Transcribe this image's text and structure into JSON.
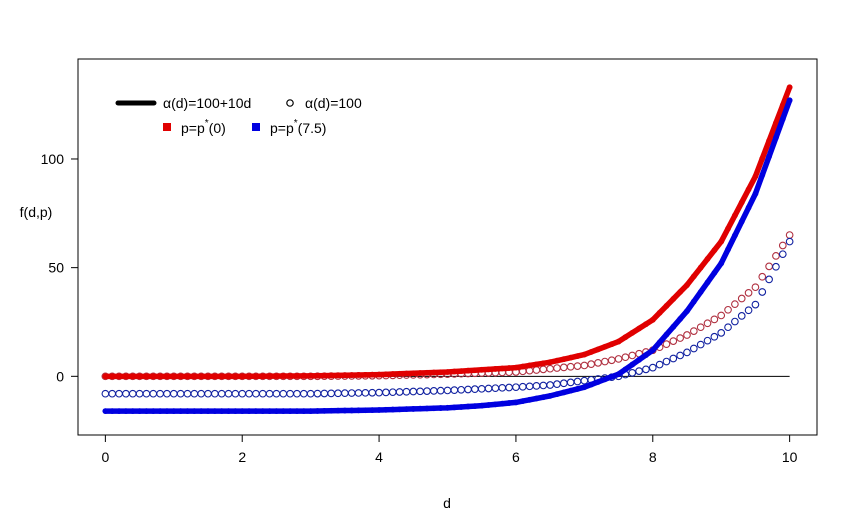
{
  "chart_data": {
    "type": "scatter",
    "title": "",
    "xlabel": "d",
    "ylabel": "f(d,p)",
    "xlim": [
      -0.4,
      10.4
    ],
    "ylim": [
      -27,
      146
    ],
    "xticks": [
      0,
      2,
      4,
      6,
      8,
      10
    ],
    "yticks": [
      0,
      50,
      100
    ],
    "xtick_labels": [
      "0",
      "2",
      "4",
      "6",
      "8",
      "10"
    ],
    "ytick_labels": [
      "0",
      "50",
      "100"
    ],
    "grid": false,
    "legend_position": "top-left",
    "reference_line": {
      "y": 0,
      "x_from": 0,
      "x_to": 10,
      "color": "#000000"
    },
    "x_step": 0.1,
    "x_range": [
      0,
      10
    ],
    "legend": {
      "line_label": "α(d)=100+10d",
      "circle_label": "α(d)=100",
      "red_label": "p=p*(0)",
      "blue_label": "p=p*(7.5)",
      "red_label_main": "p=p",
      "red_label_sup": "*",
      "red_label_rest": "(0)",
      "blue_label_main": "p=p",
      "blue_label_sup": "*",
      "blue_label_rest": "(7.5)"
    },
    "series": [
      {
        "name": "α(d)=100+10d, p=p*(0)",
        "style": "thick-line",
        "color": "#e00000",
        "x": [
          0,
          1,
          2,
          3,
          4,
          5,
          6,
          6.5,
          7,
          7.5,
          8,
          8.5,
          9,
          9.5,
          10
        ],
        "y": [
          0,
          0,
          0,
          0.2,
          0.8,
          2,
          4,
          6.5,
          10,
          16,
          26,
          42,
          62,
          92,
          133
        ]
      },
      {
        "name": "α(d)=100+10d, p=p*(7.5)",
        "style": "thick-line",
        "color": "#0000e0",
        "x": [
          0,
          1,
          2,
          3,
          4,
          5,
          5.5,
          6,
          6.5,
          7,
          7.5,
          8,
          8.5,
          9,
          9.5,
          10
        ],
        "y": [
          -16,
          -16,
          -16,
          -16,
          -15.5,
          -14.5,
          -13.5,
          -12,
          -9,
          -5,
          1,
          12,
          30,
          52,
          84,
          127
        ]
      },
      {
        "name": "α(d)=100, p=p*(0)",
        "style": "open-circles",
        "color": "#b03040",
        "x": [
          0,
          1,
          2,
          3,
          4,
          5,
          6,
          6.5,
          7,
          7.5,
          8,
          8.5,
          9,
          9.5,
          10
        ],
        "y": [
          0,
          0,
          0,
          0,
          0.3,
          1,
          2,
          3.5,
          5,
          8,
          12,
          19,
          28,
          41,
          65
        ]
      },
      {
        "name": "α(d)=100, p=p*(7.5)",
        "style": "open-circles",
        "color": "#1020a0",
        "x": [
          0,
          1,
          2,
          3,
          4,
          5,
          6,
          6.5,
          7,
          7.5,
          8,
          8.5,
          9,
          9.5,
          10
        ],
        "y": [
          -8,
          -8,
          -8,
          -8,
          -7.5,
          -6.5,
          -5,
          -4,
          -2,
          0,
          4,
          11,
          20,
          33,
          62
        ]
      }
    ]
  }
}
